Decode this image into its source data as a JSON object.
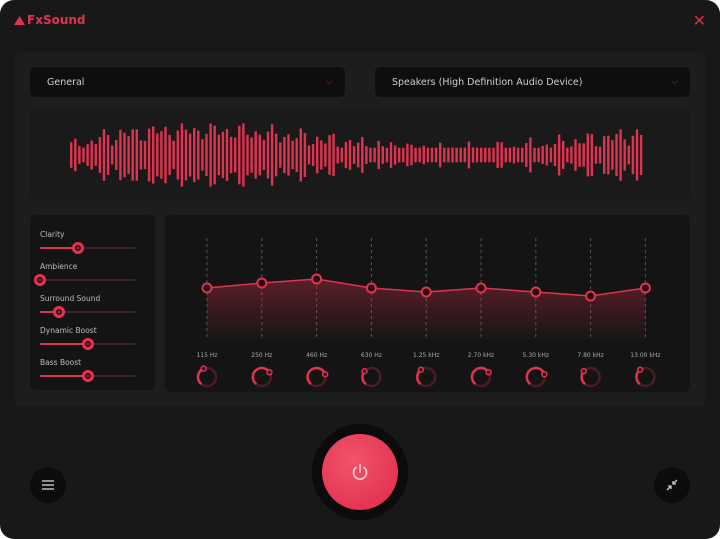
{
  "app": {
    "title": "FxSound",
    "accent": "#e0334f"
  },
  "header": {
    "preset": "General",
    "device": "Speakers (High Definition Audio Device)"
  },
  "effects": [
    {
      "label": "Clarity",
      "value": 0.4
    },
    {
      "label": "Ambience",
      "value": 0.0
    },
    {
      "label": "Surround Sound",
      "value": 0.2
    },
    {
      "label": "Dynamic Boost",
      "value": 0.51
    },
    {
      "label": "Bass Boost",
      "value": 0.51
    }
  ],
  "eq": {
    "bands": [
      {
        "label": "115 Hz",
        "gain": 0.52,
        "knob": 0.25
      },
      {
        "label": "250 Hz",
        "gain": 0.57,
        "knob": 0.55
      },
      {
        "label": "460 Hz",
        "gain": 0.61,
        "knob": 0.6
      },
      {
        "label": "630 Hz",
        "gain": 0.52,
        "knob": 0.15
      },
      {
        "label": "1.25 kHz",
        "gain": 0.48,
        "knob": 0.2
      },
      {
        "label": "2.70 kHz",
        "gain": 0.52,
        "knob": 0.55
      },
      {
        "label": "5.30 kHz",
        "gain": 0.48,
        "knob": 0.6
      },
      {
        "label": "7.80 kHz",
        "gain": 0.44,
        "knob": 0.15
      },
      {
        "label": "13.00 kHz",
        "gain": 0.52,
        "knob": 0.2
      }
    ]
  },
  "icons": {
    "close": "close-icon",
    "menu": "menu-icon",
    "power": "power-icon",
    "shrink": "minimize-icon",
    "dropdown": "chevron-down-icon"
  }
}
